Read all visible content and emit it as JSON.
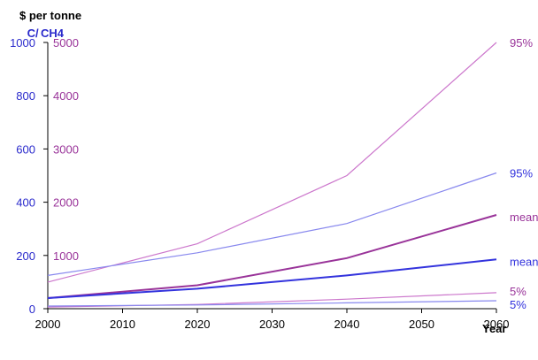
{
  "chart_data": {
    "type": "line",
    "x_title": "Year",
    "y_title_main": "$ per tonne",
    "y_title_left": "C",
    "y_title_right": "CH4",
    "x_ticks": [
      "2000",
      "2010",
      "2020",
      "2030",
      "2040",
      "2050",
      "2060"
    ],
    "x_range": [
      2000,
      2060
    ],
    "y_left_ticks": [
      "0",
      "200",
      "400",
      "600",
      "800",
      "1000"
    ],
    "y_left_range": [
      0,
      1000
    ],
    "y_right_ticks": [
      "1000",
      "2000",
      "3000",
      "4000",
      "5000"
    ],
    "y_right_range": [
      0,
      5000
    ],
    "grid": false,
    "colors": {
      "c_series": "#3333dd",
      "ch4_series": "#993399",
      "c_light": "#8888ee",
      "ch4_light": "#cc77cc",
      "axis_left": "#2a2acc",
      "axis_right": "#993399"
    },
    "series": [
      {
        "name": "95%",
        "axis": "right",
        "color": "ch4_light",
        "width": 1.2,
        "x": [
          2000,
          2020,
          2040,
          2060
        ],
        "y": [
          500,
          1220,
          2500,
          5000
        ]
      },
      {
        "name": "95%",
        "axis": "left",
        "color": "c_light",
        "width": 1.2,
        "x": [
          2000,
          2020,
          2040,
          2060
        ],
        "y": [
          125,
          210,
          320,
          510
        ]
      },
      {
        "name": "mean",
        "axis": "right",
        "color": "ch4_series",
        "width": 2,
        "x": [
          2000,
          2020,
          2040,
          2060
        ],
        "y": [
          200,
          440,
          950,
          1760
        ]
      },
      {
        "name": "mean",
        "axis": "left",
        "color": "c_series",
        "width": 2,
        "x": [
          2000,
          2020,
          2040,
          2060
        ],
        "y": [
          40,
          75,
          125,
          185
        ]
      },
      {
        "name": "5%",
        "axis": "right",
        "color": "ch4_light",
        "width": 1.2,
        "x": [
          2000,
          2020,
          2040,
          2060
        ],
        "y": [
          30,
          80,
          180,
          300
        ]
      },
      {
        "name": "5%",
        "axis": "left",
        "color": "c_light",
        "width": 1.2,
        "x": [
          2000,
          2020,
          2040,
          2060
        ],
        "y": [
          10,
          14,
          22,
          30
        ]
      }
    ]
  }
}
